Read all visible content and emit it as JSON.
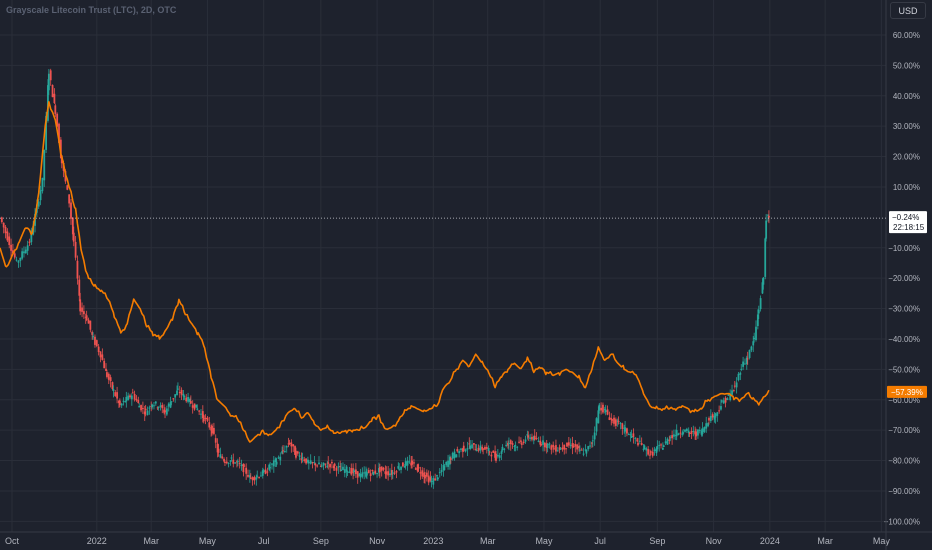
{
  "header": {
    "symbol_title": "Grayscale Litecoin Trust (LTC), 2D, OTC",
    "currency": "USD"
  },
  "colors": {
    "background": "#1e222d",
    "grid": "#2a2e39",
    "text": "#b2b5be",
    "up": "#26a69a",
    "down": "#ef5350",
    "compare_line": "#f57c00",
    "crosshair": "#d1d4dc"
  },
  "crosshair": {
    "value": "−0.24%",
    "time": "22:18:15"
  },
  "compare_label": "−57.39%",
  "chart_data": {
    "type": "line",
    "y_unit": "% change",
    "ylim": [
      -100,
      65
    ],
    "y_ticks": [
      "60.00%",
      "50.00%",
      "40.00%",
      "30.00%",
      "20.00%",
      "10.00%",
      "−10.00%",
      "−20.00%",
      "−30.00%",
      "−40.00%",
      "−50.00%",
      "−60.00%",
      "−70.00%",
      "−80.00%",
      "−90.00%",
      "−100.00%"
    ],
    "y_tick_values": [
      60,
      50,
      40,
      30,
      20,
      10,
      -10,
      -20,
      -30,
      -40,
      -50,
      -60,
      -70,
      -80,
      -90,
      -100
    ],
    "x_ticks": [
      "Oct",
      "2022",
      "Mar",
      "May",
      "Jul",
      "Sep",
      "Nov",
      "2023",
      "Mar",
      "May",
      "Jul",
      "Sep",
      "Nov",
      "2024",
      "Mar",
      "May"
    ],
    "x_tick_dates": [
      "2021-10-01",
      "2022-01-01",
      "2022-03-01",
      "2022-05-01",
      "2022-07-01",
      "2022-09-01",
      "2022-11-01",
      "2023-01-01",
      "2023-03-01",
      "2023-05-01",
      "2023-07-01",
      "2023-09-01",
      "2023-11-01",
      "2024-01-01",
      "2024-03-01",
      "2024-05-01"
    ],
    "xlim": [
      "2021-09-18",
      "2024-05-06"
    ],
    "series": [
      {
        "style": "candles",
        "points": [
          [
            "2021-09-18",
            0
          ],
          [
            "2021-10-06",
            -15
          ],
          [
            "2021-10-20",
            -8
          ],
          [
            "2021-11-03",
            12
          ],
          [
            "2021-11-10",
            48
          ],
          [
            "2021-11-17",
            35
          ],
          [
            "2021-11-24",
            18
          ],
          [
            "2021-12-02",
            5
          ],
          [
            "2021-12-07",
            -8
          ],
          [
            "2021-12-14",
            -30
          ],
          [
            "2021-12-21",
            -33
          ],
          [
            "2021-12-28",
            -40
          ],
          [
            "2022-01-05",
            -45
          ],
          [
            "2022-01-12",
            -52
          ],
          [
            "2022-01-19",
            -57
          ],
          [
            "2022-01-26",
            -62
          ],
          [
            "2022-02-02",
            -60
          ],
          [
            "2022-02-09",
            -58
          ],
          [
            "2022-02-16",
            -62
          ],
          [
            "2022-02-23",
            -64
          ],
          [
            "2022-03-02",
            -61
          ],
          [
            "2022-03-09",
            -62
          ],
          [
            "2022-03-16",
            -64
          ],
          [
            "2022-03-23",
            -60
          ],
          [
            "2022-03-30",
            -57
          ],
          [
            "2022-04-06",
            -59
          ],
          [
            "2022-04-13",
            -61
          ],
          [
            "2022-04-20",
            -63
          ],
          [
            "2022-04-27",
            -66
          ],
          [
            "2022-05-06",
            -70
          ],
          [
            "2022-05-13",
            -78
          ],
          [
            "2022-05-20",
            -80
          ],
          [
            "2022-05-27",
            -80
          ],
          [
            "2022-06-03",
            -81
          ],
          [
            "2022-06-10",
            -83
          ],
          [
            "2022-06-17",
            -86
          ],
          [
            "2022-06-24",
            -85
          ],
          [
            "2022-07-01",
            -84
          ],
          [
            "2022-07-08",
            -82
          ],
          [
            "2022-07-15",
            -80
          ],
          [
            "2022-07-22",
            -77
          ],
          [
            "2022-07-29",
            -74
          ],
          [
            "2022-08-05",
            -78
          ],
          [
            "2022-08-12",
            -79
          ],
          [
            "2022-08-19",
            -81
          ],
          [
            "2022-08-26",
            -81
          ],
          [
            "2022-09-02",
            -82
          ],
          [
            "2022-09-09",
            -81
          ],
          [
            "2022-09-16",
            -82
          ],
          [
            "2022-09-23",
            -83
          ],
          [
            "2022-09-30",
            -83
          ],
          [
            "2022-10-07",
            -84
          ],
          [
            "2022-10-14",
            -85
          ],
          [
            "2022-10-21",
            -84
          ],
          [
            "2022-10-28",
            -84
          ],
          [
            "2022-11-04",
            -83
          ],
          [
            "2022-11-11",
            -84
          ],
          [
            "2022-11-18",
            -84
          ],
          [
            "2022-11-25",
            -82
          ],
          [
            "2022-12-02",
            -81
          ],
          [
            "2022-12-09",
            -81
          ],
          [
            "2022-12-16",
            -83
          ],
          [
            "2022-12-23",
            -85
          ],
          [
            "2022-12-30",
            -87
          ],
          [
            "2023-01-06",
            -85
          ],
          [
            "2023-01-13",
            -82
          ],
          [
            "2023-01-20",
            -79
          ],
          [
            "2023-01-27",
            -77
          ],
          [
            "2023-02-03",
            -76
          ],
          [
            "2023-02-10",
            -75
          ],
          [
            "2023-02-17",
            -76
          ],
          [
            "2023-02-24",
            -76
          ],
          [
            "2023-03-03",
            -77
          ],
          [
            "2023-03-10",
            -79
          ],
          [
            "2023-03-17",
            -76
          ],
          [
            "2023-03-24",
            -74
          ],
          [
            "2023-03-31",
            -75
          ],
          [
            "2023-04-07",
            -74
          ],
          [
            "2023-04-14",
            -72
          ],
          [
            "2023-04-21",
            -73
          ],
          [
            "2023-04-28",
            -74
          ],
          [
            "2023-05-05",
            -75
          ],
          [
            "2023-05-12",
            -76
          ],
          [
            "2023-05-19",
            -76
          ],
          [
            "2023-05-26",
            -75
          ],
          [
            "2023-06-02",
            -75
          ],
          [
            "2023-06-09",
            -77
          ],
          [
            "2023-06-16",
            -77
          ],
          [
            "2023-06-23",
            -73
          ],
          [
            "2023-06-30",
            -62
          ],
          [
            "2023-07-07",
            -64
          ],
          [
            "2023-07-14",
            -67
          ],
          [
            "2023-07-21",
            -68
          ],
          [
            "2023-07-28",
            -70
          ],
          [
            "2023-08-04",
            -72
          ],
          [
            "2023-08-11",
            -74
          ],
          [
            "2023-08-18",
            -76
          ],
          [
            "2023-08-25",
            -78
          ],
          [
            "2023-09-01",
            -76
          ],
          [
            "2023-09-08",
            -75
          ],
          [
            "2023-09-15",
            -72
          ],
          [
            "2023-09-22",
            -71
          ],
          [
            "2023-09-29",
            -70
          ],
          [
            "2023-10-06",
            -71
          ],
          [
            "2023-10-13",
            -71
          ],
          [
            "2023-10-20",
            -70
          ],
          [
            "2023-10-27",
            -66
          ],
          [
            "2023-11-03",
            -65
          ],
          [
            "2023-11-10",
            -61
          ],
          [
            "2023-11-17",
            -59
          ],
          [
            "2023-11-24",
            -56
          ],
          [
            "2023-12-01",
            -49
          ],
          [
            "2023-12-08",
            -46
          ],
          [
            "2023-12-15",
            -40
          ],
          [
            "2023-12-20",
            -30
          ],
          [
            "2023-12-25",
            -20
          ],
          [
            "2023-12-28",
            0
          ],
          [
            "2023-12-31",
            -0.24
          ]
        ]
      },
      {
        "style": "line",
        "points": [
          [
            "2021-09-18",
            -10
          ],
          [
            "2021-09-25",
            -17
          ],
          [
            "2021-10-02",
            -12
          ],
          [
            "2021-10-09",
            -8
          ],
          [
            "2021-10-16",
            -3
          ],
          [
            "2021-10-23",
            -5
          ],
          [
            "2021-10-30",
            8
          ],
          [
            "2021-11-06",
            30
          ],
          [
            "2021-11-10",
            38
          ],
          [
            "2021-11-17",
            32
          ],
          [
            "2021-11-24",
            20
          ],
          [
            "2021-12-02",
            10
          ],
          [
            "2021-12-09",
            2
          ],
          [
            "2021-12-16",
            -12
          ],
          [
            "2021-12-23",
            -20
          ],
          [
            "2021-12-30",
            -23
          ],
          [
            "2022-01-06",
            -24
          ],
          [
            "2022-01-13",
            -27
          ],
          [
            "2022-01-20",
            -32
          ],
          [
            "2022-01-27",
            -38
          ],
          [
            "2022-02-03",
            -35
          ],
          [
            "2022-02-10",
            -27
          ],
          [
            "2022-02-17",
            -30
          ],
          [
            "2022-02-24",
            -36
          ],
          [
            "2022-03-03",
            -38
          ],
          [
            "2022-03-10",
            -40
          ],
          [
            "2022-03-17",
            -37
          ],
          [
            "2022-03-24",
            -33
          ],
          [
            "2022-03-31",
            -27
          ],
          [
            "2022-04-07",
            -32
          ],
          [
            "2022-04-14",
            -35
          ],
          [
            "2022-04-21",
            -38
          ],
          [
            "2022-04-28",
            -43
          ],
          [
            "2022-05-05",
            -52
          ],
          [
            "2022-05-12",
            -60
          ],
          [
            "2022-05-19",
            -62
          ],
          [
            "2022-05-26",
            -65
          ],
          [
            "2022-06-02",
            -66
          ],
          [
            "2022-06-09",
            -70
          ],
          [
            "2022-06-16",
            -74
          ],
          [
            "2022-06-23",
            -72
          ],
          [
            "2022-06-30",
            -70
          ],
          [
            "2022-07-07",
            -72
          ],
          [
            "2022-07-14",
            -70
          ],
          [
            "2022-07-21",
            -67
          ],
          [
            "2022-07-28",
            -64
          ],
          [
            "2022-08-04",
            -63
          ],
          [
            "2022-08-11",
            -66
          ],
          [
            "2022-08-18",
            -64
          ],
          [
            "2022-08-25",
            -68
          ],
          [
            "2022-09-01",
            -70
          ],
          [
            "2022-09-08",
            -69
          ],
          [
            "2022-09-15",
            -71
          ],
          [
            "2022-09-22",
            -71
          ],
          [
            "2022-09-29",
            -70
          ],
          [
            "2022-10-06",
            -70
          ],
          [
            "2022-10-13",
            -70
          ],
          [
            "2022-10-20",
            -69
          ],
          [
            "2022-10-27",
            -66
          ],
          [
            "2022-11-03",
            -65
          ],
          [
            "2022-11-10",
            -70
          ],
          [
            "2022-11-17",
            -69
          ],
          [
            "2022-11-24",
            -67
          ],
          [
            "2022-12-01",
            -64
          ],
          [
            "2022-12-08",
            -62
          ],
          [
            "2022-12-15",
            -63
          ],
          [
            "2022-12-22",
            -64
          ],
          [
            "2022-12-29",
            -63
          ],
          [
            "2023-01-05",
            -62
          ],
          [
            "2023-01-12",
            -56
          ],
          [
            "2023-01-19",
            -54
          ],
          [
            "2023-01-26",
            -50
          ],
          [
            "2023-02-02",
            -47
          ],
          [
            "2023-02-09",
            -49
          ],
          [
            "2023-02-16",
            -45
          ],
          [
            "2023-02-23",
            -48
          ],
          [
            "2023-03-02",
            -51
          ],
          [
            "2023-03-09",
            -56
          ],
          [
            "2023-03-16",
            -52
          ],
          [
            "2023-03-23",
            -50
          ],
          [
            "2023-03-30",
            -48
          ],
          [
            "2023-04-06",
            -50
          ],
          [
            "2023-04-13",
            -46
          ],
          [
            "2023-04-20",
            -51
          ],
          [
            "2023-04-27",
            -49
          ],
          [
            "2023-05-04",
            -51
          ],
          [
            "2023-05-11",
            -52
          ],
          [
            "2023-05-18",
            -51
          ],
          [
            "2023-05-25",
            -50
          ],
          [
            "2023-06-01",
            -51
          ],
          [
            "2023-06-08",
            -53
          ],
          [
            "2023-06-15",
            -56
          ],
          [
            "2023-06-22",
            -50
          ],
          [
            "2023-06-29",
            -43
          ],
          [
            "2023-07-06",
            -47
          ],
          [
            "2023-07-13",
            -45
          ],
          [
            "2023-07-20",
            -48
          ],
          [
            "2023-07-27",
            -50
          ],
          [
            "2023-08-03",
            -51
          ],
          [
            "2023-08-10",
            -52
          ],
          [
            "2023-08-17",
            -58
          ],
          [
            "2023-08-24",
            -62
          ],
          [
            "2023-08-31",
            -63
          ],
          [
            "2023-09-07",
            -63
          ],
          [
            "2023-09-14",
            -63
          ],
          [
            "2023-09-21",
            -63
          ],
          [
            "2023-09-28",
            -62
          ],
          [
            "2023-10-05",
            -63
          ],
          [
            "2023-10-12",
            -64
          ],
          [
            "2023-10-19",
            -63
          ],
          [
            "2023-10-26",
            -60
          ],
          [
            "2023-11-02",
            -59
          ],
          [
            "2023-11-09",
            -58
          ],
          [
            "2023-11-16",
            -58
          ],
          [
            "2023-11-23",
            -59
          ],
          [
            "2023-11-30",
            -60
          ],
          [
            "2023-12-07",
            -58
          ],
          [
            "2023-12-14",
            -60
          ],
          [
            "2023-12-21",
            -61
          ],
          [
            "2023-12-31",
            -57.39
          ]
        ]
      }
    ]
  }
}
